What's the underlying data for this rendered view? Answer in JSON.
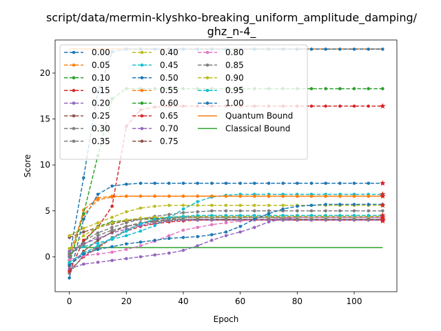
{
  "chart_data": {
    "type": "line",
    "title_line1": "script/data/mermin-klyshko-breaking_uniform_amplitude_damping/",
    "title_line2": "ghz_n-4_",
    "xlabel": "Epoch",
    "ylabel": "Score",
    "xlim": [
      -5,
      115
    ],
    "ylim": [
      -3.8,
      23.6
    ],
    "xticks": [
      0,
      20,
      40,
      60,
      80,
      100
    ],
    "yticks": [
      0,
      5,
      10,
      15,
      20
    ],
    "legend_loc": "upper-left",
    "epochs": [
      0,
      5,
      10,
      15,
      20,
      25,
      30,
      35,
      40,
      45,
      50,
      55,
      60,
      65,
      70,
      75,
      80,
      85,
      90,
      95,
      100,
      105,
      110
    ],
    "colors": {
      "tab_blue": "#1f77b4",
      "tab_orange": "#ff7f0e",
      "tab_green": "#2ca02c",
      "tab_red": "#d62728",
      "tab_purple": "#9467bd",
      "tab_brown": "#8c564b",
      "tab_pink": "#e377c2",
      "tab_gray": "#7f7f7f",
      "tab_olive": "#bcbd22",
      "tab_cyan": "#17becf"
    },
    "series": [
      {
        "name": "0.00",
        "color": "#1f77b4",
        "values": [
          0.0,
          8.6,
          18.0,
          22.3,
          22.6,
          22.6,
          22.6,
          22.6,
          22.6,
          22.6,
          22.6,
          22.6,
          22.6,
          22.6,
          22.6,
          22.6,
          22.6,
          22.6,
          22.6,
          22.6,
          22.6,
          22.6,
          22.6
        ]
      },
      {
        "name": "0.05",
        "color": "#ff7f0e",
        "values": [
          -0.5,
          5.1,
          6.4,
          6.6,
          6.6,
          6.6,
          6.6,
          6.6,
          6.6,
          6.6,
          6.6,
          6.6,
          6.6,
          6.6,
          6.6,
          6.6,
          6.6,
          6.6,
          6.6,
          6.6,
          6.6,
          6.6,
          6.6
        ]
      },
      {
        "name": "0.10",
        "color": "#2ca02c",
        "values": [
          0.2,
          1.6,
          3.3,
          3.8,
          4.0,
          4.1,
          4.1,
          4.1,
          4.1,
          4.1,
          4.1,
          4.1,
          4.1,
          4.1,
          4.1,
          4.1,
          4.1,
          4.1,
          4.1,
          4.1,
          4.1,
          4.1,
          4.1
        ]
      },
      {
        "name": "0.15",
        "color": "#d62728",
        "values": [
          -1.5,
          0.0,
          1.0,
          2.0,
          2.8,
          3.3,
          3.6,
          3.8,
          3.9,
          4.0,
          4.0,
          4.0,
          4.0,
          4.0,
          4.0,
          4.0,
          4.0,
          4.0,
          4.0,
          4.0,
          4.0,
          4.0,
          4.0
        ]
      },
      {
        "name": "0.20",
        "color": "#9467bd",
        "values": [
          -1.3,
          -0.8,
          -0.6,
          -0.4,
          -0.2,
          0.0,
          0.2,
          0.4,
          0.7,
          1.2,
          1.8,
          2.3,
          2.7,
          3.2,
          3.8,
          4.1,
          4.3,
          4.3,
          4.3,
          4.3,
          4.3,
          4.3,
          4.3
        ]
      },
      {
        "name": "0.25",
        "color": "#8c564b",
        "values": [
          2.1,
          2.7,
          3.2,
          3.6,
          3.9,
          4.1,
          4.2,
          4.2,
          4.3,
          4.3,
          4.3,
          4.3,
          4.3,
          4.3,
          4.3,
          4.3,
          4.3,
          4.3,
          4.3,
          4.3,
          4.3,
          4.3,
          4.3
        ]
      },
      {
        "name": "0.30",
        "color": "#7f7f7f",
        "values": [
          -1.8,
          0.2,
          1.1,
          2.1,
          2.9,
          3.6,
          4.0,
          4.2,
          4.3,
          4.3,
          4.3,
          4.3,
          4.3,
          4.3,
          4.3,
          4.3,
          4.3,
          4.3,
          4.3,
          4.3,
          4.3,
          4.3,
          4.3
        ]
      },
      {
        "name": "0.35",
        "color": "#7f7f7f",
        "values": [
          0.1,
          1.7,
          2.6,
          3.2,
          3.7,
          4.1,
          4.4,
          4.6,
          4.8,
          4.9,
          5.0,
          5.0,
          5.0,
          5.0,
          5.0,
          5.0,
          5.0,
          5.0,
          5.0,
          5.0,
          5.0,
          5.0,
          5.0
        ]
      },
      {
        "name": "0.40",
        "color": "#bcbd22",
        "values": [
          2.3,
          3.1,
          3.7,
          4.3,
          4.9,
          5.3,
          5.5,
          5.6,
          5.6,
          5.6,
          5.6,
          5.6,
          5.6,
          5.6,
          5.6,
          5.6,
          5.6,
          5.6,
          5.6,
          5.6,
          5.6,
          5.6,
          5.6
        ]
      },
      {
        "name": "0.45",
        "color": "#17becf",
        "values": [
          0.4,
          1.1,
          1.5,
          1.9,
          2.3,
          2.8,
          3.4,
          4.2,
          5.2,
          6.0,
          6.5,
          6.7,
          6.8,
          6.8,
          6.8,
          6.8,
          6.8,
          6.8,
          6.8,
          6.8,
          6.8,
          6.8,
          6.8
        ]
      },
      {
        "name": "0.50",
        "color": "#1f77b4",
        "values": [
          -2.3,
          4.1,
          6.8,
          7.7,
          7.9,
          8.0,
          8.0,
          8.0,
          8.0,
          8.0,
          8.0,
          8.0,
          8.0,
          8.0,
          8.0,
          8.0,
          8.0,
          8.0,
          8.0,
          8.0,
          8.0,
          8.0,
          8.0
        ]
      },
      {
        "name": "0.55",
        "color": "#ff7f0e",
        "values": [
          0.3,
          4.6,
          6.2,
          6.5,
          6.6,
          6.6,
          6.6,
          6.6,
          6.6,
          6.6,
          6.6,
          6.6,
          6.6,
          6.6,
          6.6,
          6.6,
          6.6,
          6.6,
          6.6,
          6.6,
          6.6,
          6.6,
          6.6
        ]
      },
      {
        "name": "0.60",
        "color": "#2ca02c",
        "values": [
          -0.8,
          4.7,
          11.0,
          17.2,
          18.3,
          18.3,
          18.3,
          18.3,
          18.3,
          18.3,
          18.3,
          18.3,
          18.3,
          18.3,
          18.3,
          18.3,
          18.3,
          18.3,
          18.3,
          18.3,
          18.3,
          18.3,
          18.3
        ]
      },
      {
        "name": "0.65",
        "color": "#d62728",
        "values": [
          -1.6,
          1.8,
          3.2,
          5.5,
          14.2,
          16.0,
          16.3,
          16.4,
          16.4,
          16.4,
          16.4,
          16.4,
          16.4,
          16.4,
          16.4,
          16.4,
          16.4,
          16.4,
          16.4,
          16.4,
          16.4,
          16.4,
          16.4
        ]
      },
      {
        "name": "0.70",
        "color": "#9467bd",
        "values": [
          0.6,
          1.4,
          2.0,
          2.6,
          3.0,
          3.4,
          3.7,
          3.9,
          4.0,
          4.0,
          4.0,
          4.0,
          4.0,
          4.0,
          4.0,
          4.0,
          4.0,
          4.0,
          4.0,
          4.0,
          4.0,
          4.0,
          4.0
        ]
      },
      {
        "name": "0.75",
        "color": "#8c564b",
        "values": [
          -1.0,
          0.6,
          1.8,
          2.7,
          3.3,
          3.7,
          3.9,
          4.0,
          4.1,
          4.1,
          4.1,
          4.1,
          4.1,
          4.1,
          4.1,
          4.1,
          4.1,
          4.1,
          4.1,
          4.1,
          4.1,
          4.1,
          4.1
        ]
      },
      {
        "name": "0.80",
        "color": "#e377c2",
        "values": [
          -0.3,
          0.1,
          0.3,
          0.5,
          0.8,
          1.2,
          1.7,
          2.3,
          2.9,
          3.2,
          3.5,
          3.7,
          3.9,
          4.0,
          4.1,
          4.2,
          4.3,
          4.3,
          4.3,
          4.3,
          4.3,
          4.3,
          4.3
        ]
      },
      {
        "name": "0.85",
        "color": "#7f7f7f",
        "values": [
          0.3,
          1.3,
          2.3,
          2.9,
          3.3,
          3.6,
          3.8,
          4.0,
          4.1,
          4.1,
          4.1,
          4.1,
          4.1,
          4.1,
          4.1,
          4.1,
          4.1,
          4.1,
          4.1,
          4.1,
          4.1,
          4.1,
          4.1
        ]
      },
      {
        "name": "0.90",
        "color": "#bcbd22",
        "values": [
          0.9,
          2.3,
          3.2,
          3.7,
          4.0,
          4.2,
          4.3,
          4.3,
          4.4,
          4.4,
          4.4,
          4.4,
          4.4,
          4.4,
          4.4,
          4.4,
          4.4,
          4.4,
          4.4,
          4.4,
          4.4,
          4.4,
          4.4
        ]
      },
      {
        "name": "0.95",
        "color": "#17becf",
        "values": [
          -0.6,
          0.4,
          1.2,
          2.0,
          2.8,
          3.6,
          4.1,
          4.3,
          4.4,
          4.5,
          4.5,
          4.5,
          4.5,
          4.5,
          4.5,
          4.5,
          4.5,
          4.5,
          4.5,
          4.5,
          4.5,
          4.5,
          4.5
        ]
      },
      {
        "name": "1.00",
        "color": "#1f77b4",
        "values": [
          -0.9,
          0.3,
          0.8,
          1.1,
          1.4,
          1.6,
          1.8,
          2.0,
          2.1,
          2.2,
          2.4,
          2.7,
          3.3,
          4.1,
          4.7,
          5.2,
          5.5,
          5.6,
          5.7,
          5.7,
          5.7,
          5.7,
          5.7
        ]
      }
    ],
    "bounds": [
      {
        "name": "Quantum Bound",
        "color": "#ff7f0e",
        "value": 22.627,
        "x": [
          0,
          110
        ]
      },
      {
        "name": "Classical Bound",
        "color": "#2ca02c",
        "value": 1.0,
        "x": [
          0,
          110
        ]
      }
    ],
    "final_markers": [
      {
        "color": "#d62728",
        "values": [
          16.4,
          8.0,
          6.8,
          6.6,
          5.6,
          4.5,
          4.3,
          4.1,
          4.0,
          3.9
        ]
      }
    ]
  }
}
